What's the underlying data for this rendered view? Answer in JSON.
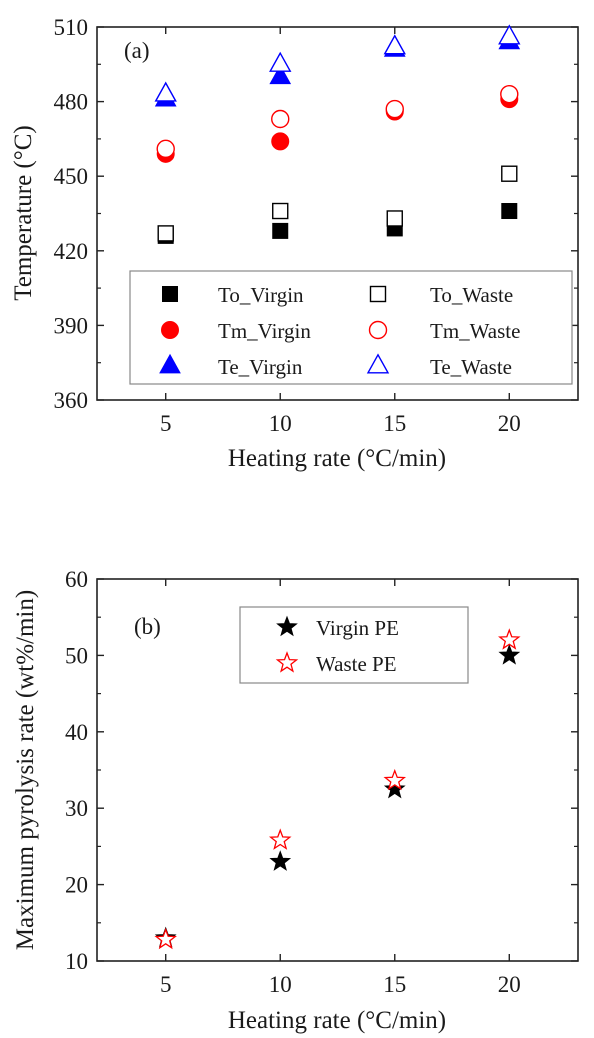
{
  "chart_data": [
    {
      "panel_label": "(a)",
      "type": "scatter",
      "xlabel": "Heating rate (°C/min)",
      "ylabel": "Temperature (°C)",
      "xlim": [
        2,
        23
      ],
      "ylim": [
        360,
        510
      ],
      "x_ticks": [
        5,
        10,
        15,
        20
      ],
      "y_ticks": [
        360,
        390,
        420,
        450,
        480,
        510
      ],
      "grid": false,
      "legend_position": "bottom",
      "legend_columns": 2,
      "series": [
        {
          "name": "To_Virgin",
          "marker": "square",
          "filled": true,
          "color": "#000000",
          "x": [
            5,
            10,
            15,
            20
          ],
          "y": [
            426,
            428,
            429,
            436
          ]
        },
        {
          "name": "To_Waste",
          "marker": "square",
          "filled": false,
          "color": "#000000",
          "x": [
            5,
            10,
            15,
            20
          ],
          "y": [
            427,
            436,
            433,
            451
          ]
        },
        {
          "name": "Tm_Virgin",
          "marker": "circle",
          "filled": true,
          "color": "#ff0000",
          "x": [
            5,
            10,
            15,
            20
          ],
          "y": [
            459,
            464,
            476,
            481
          ]
        },
        {
          "name": "Tm_Waste",
          "marker": "circle",
          "filled": false,
          "color": "#ff0000",
          "x": [
            5,
            10,
            15,
            20
          ],
          "y": [
            461,
            473,
            477,
            483
          ]
        },
        {
          "name": "Te_Virgin",
          "marker": "triangle",
          "filled": true,
          "color": "#0000ff",
          "x": [
            5,
            10,
            15,
            20
          ],
          "y": [
            481,
            490,
            501,
            504
          ]
        },
        {
          "name": "Te_Waste",
          "marker": "triangle",
          "filled": false,
          "color": "#0000ff",
          "x": [
            5,
            10,
            15,
            20
          ],
          "y": [
            483,
            495,
            502,
            506
          ]
        }
      ]
    },
    {
      "panel_label": "(b)",
      "type": "scatter",
      "xlabel": "Heating rate (°C/min)",
      "ylabel": "Maximum pyrolysis rate (wt%/min)",
      "xlim": [
        2,
        23
      ],
      "ylim": [
        10,
        60
      ],
      "x_ticks": [
        5,
        10,
        15,
        20
      ],
      "y_ticks": [
        10,
        20,
        30,
        40,
        50,
        60
      ],
      "grid": false,
      "legend_position": "top-center",
      "legend_columns": 1,
      "series": [
        {
          "name": "Virgin PE",
          "marker": "star",
          "filled": true,
          "color": "#000000",
          "x": [
            5,
            10,
            15,
            20
          ],
          "y": [
            13.0,
            23.0,
            32.5,
            50.0
          ]
        },
        {
          "name": "Waste PE",
          "marker": "star",
          "filled": false,
          "color": "#ff0000",
          "x": [
            5,
            10,
            15,
            20
          ],
          "y": [
            12.8,
            25.8,
            33.6,
            52.0
          ]
        }
      ]
    }
  ]
}
